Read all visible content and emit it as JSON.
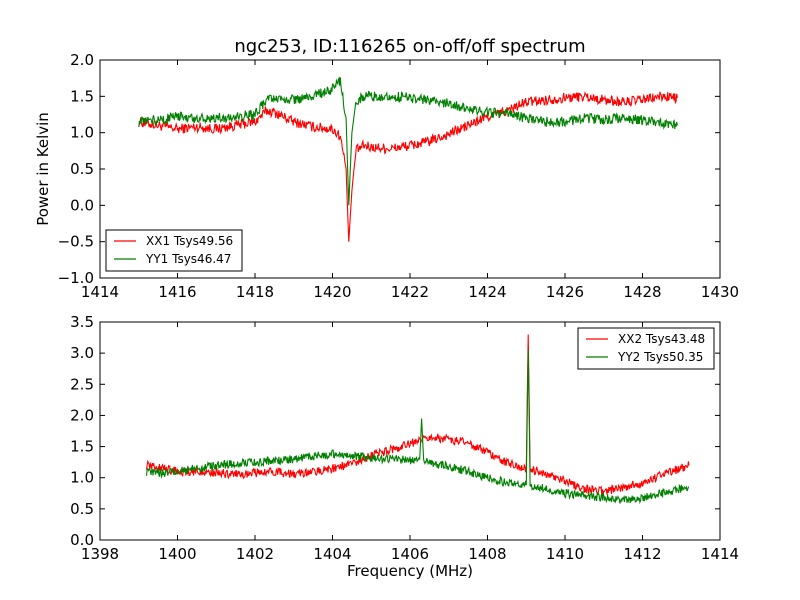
{
  "chart_data": [
    {
      "type": "line",
      "title": "ngc253, ID:116265 on-off/off spectrum",
      "xlabel": "",
      "ylabel": "Power in Kelvin",
      "xlim": [
        1414,
        1430
      ],
      "ylim": [
        -1.0,
        2.0
      ],
      "xticks": [
        1414,
        1416,
        1418,
        1420,
        1422,
        1424,
        1426,
        1428,
        1430
      ],
      "xtick_labels": [
        "1414",
        "1416",
        "1418",
        "1420",
        "1422",
        "1424",
        "1426",
        "1428",
        "1430"
      ],
      "yticks": [
        -1.0,
        -0.5,
        0.0,
        0.5,
        1.0,
        1.5,
        2.0
      ],
      "ytick_labels": [
        "−1.0",
        "−0.5",
        "0.0",
        "0.5",
        "1.0",
        "1.5",
        "2.0"
      ],
      "grid": false,
      "legend_position": "lower-left",
      "series": [
        {
          "name": "XX1 Tsys49.56",
          "color": "#ff0000",
          "x": [
            1415.0,
            1415.5,
            1416.0,
            1416.5,
            1417.0,
            1417.5,
            1418.0,
            1418.3,
            1418.5,
            1419.0,
            1419.5,
            1420.0,
            1420.2,
            1420.35,
            1420.42,
            1420.5,
            1420.6,
            1420.8,
            1421.0,
            1421.5,
            1422.0,
            1422.5,
            1423.0,
            1423.5,
            1424.0,
            1424.5,
            1425.0,
            1425.5,
            1426.0,
            1426.5,
            1427.0,
            1427.5,
            1428.0,
            1428.5,
            1428.9
          ],
          "y": [
            1.15,
            1.1,
            1.05,
            1.08,
            1.05,
            1.1,
            1.15,
            1.3,
            1.28,
            1.15,
            1.08,
            1.05,
            0.95,
            0.5,
            -0.5,
            0.2,
            0.75,
            0.82,
            0.8,
            0.78,
            0.82,
            0.88,
            0.98,
            1.1,
            1.22,
            1.3,
            1.42,
            1.45,
            1.48,
            1.5,
            1.45,
            1.42,
            1.45,
            1.5,
            1.48
          ]
        },
        {
          "name": "YY1 Tsys46.47",
          "color": "#008000",
          "x": [
            1415.0,
            1415.5,
            1416.0,
            1416.5,
            1417.0,
            1417.5,
            1418.0,
            1418.3,
            1418.5,
            1419.0,
            1419.5,
            1420.0,
            1420.2,
            1420.35,
            1420.42,
            1420.5,
            1420.6,
            1420.8,
            1421.0,
            1421.5,
            1422.0,
            1422.5,
            1423.0,
            1423.5,
            1424.0,
            1424.5,
            1425.0,
            1425.5,
            1426.0,
            1426.5,
            1427.0,
            1427.5,
            1428.0,
            1428.5,
            1428.9
          ],
          "y": [
            1.15,
            1.18,
            1.22,
            1.2,
            1.2,
            1.22,
            1.25,
            1.45,
            1.45,
            1.45,
            1.5,
            1.6,
            1.7,
            1.2,
            0.0,
            1.0,
            1.4,
            1.5,
            1.5,
            1.5,
            1.48,
            1.45,
            1.4,
            1.32,
            1.28,
            1.25,
            1.2,
            1.15,
            1.15,
            1.2,
            1.18,
            1.2,
            1.18,
            1.12,
            1.1
          ]
        }
      ]
    },
    {
      "type": "line",
      "title": "",
      "xlabel": "Frequency (MHz)",
      "ylabel": "",
      "xlim": [
        1398,
        1414
      ],
      "ylim": [
        0.0,
        3.5
      ],
      "xticks": [
        1398,
        1400,
        1402,
        1404,
        1406,
        1408,
        1410,
        1412,
        1414
      ],
      "xtick_labels": [
        "1398",
        "1400",
        "1402",
        "1404",
        "1406",
        "1408",
        "1410",
        "1412",
        "1414"
      ],
      "yticks": [
        0.0,
        0.5,
        1.0,
        1.5,
        2.0,
        2.5,
        3.0,
        3.5
      ],
      "ytick_labels": [
        "0.0",
        "0.5",
        "1.0",
        "1.5",
        "2.0",
        "2.5",
        "3.0",
        "3.5"
      ],
      "grid": false,
      "legend_position": "top-right",
      "series": [
        {
          "name": "XX2 Tsys43.48",
          "color": "#ff0000",
          "x": [
            1399.2,
            1399.6,
            1400.0,
            1400.5,
            1401.0,
            1401.5,
            1402.0,
            1402.5,
            1403.0,
            1403.5,
            1404.0,
            1404.5,
            1405.0,
            1405.5,
            1406.0,
            1406.5,
            1407.0,
            1407.5,
            1408.0,
            1408.5,
            1409.0,
            1409.05,
            1409.1,
            1409.5,
            1410.0,
            1410.5,
            1411.0,
            1411.5,
            1412.0,
            1412.5,
            1413.2
          ],
          "y": [
            1.2,
            1.15,
            1.1,
            1.1,
            1.08,
            1.05,
            1.08,
            1.1,
            1.05,
            1.1,
            1.15,
            1.22,
            1.35,
            1.45,
            1.55,
            1.65,
            1.62,
            1.55,
            1.4,
            1.25,
            1.15,
            3.3,
            1.15,
            1.05,
            0.95,
            0.82,
            0.78,
            0.85,
            0.92,
            1.05,
            1.2
          ]
        },
        {
          "name": "YY2 Tsys50.35",
          "color": "#008000",
          "x": [
            1399.2,
            1399.6,
            1400.0,
            1400.5,
            1401.0,
            1401.5,
            1402.0,
            1402.5,
            1403.0,
            1403.5,
            1404.0,
            1404.5,
            1405.0,
            1405.5,
            1406.0,
            1406.25,
            1406.3,
            1406.35,
            1406.5,
            1407.0,
            1407.5,
            1408.0,
            1408.5,
            1409.0,
            1409.05,
            1409.1,
            1409.5,
            1410.0,
            1410.5,
            1411.0,
            1411.5,
            1412.0,
            1412.5,
            1413.2
          ],
          "y": [
            1.1,
            1.08,
            1.1,
            1.15,
            1.2,
            1.22,
            1.25,
            1.28,
            1.3,
            1.35,
            1.38,
            1.35,
            1.32,
            1.3,
            1.28,
            1.3,
            1.95,
            1.3,
            1.25,
            1.18,
            1.1,
            1.0,
            0.92,
            0.88,
            3.05,
            0.88,
            0.82,
            0.75,
            0.72,
            0.68,
            0.65,
            0.68,
            0.75,
            0.85
          ]
        }
      ]
    }
  ]
}
